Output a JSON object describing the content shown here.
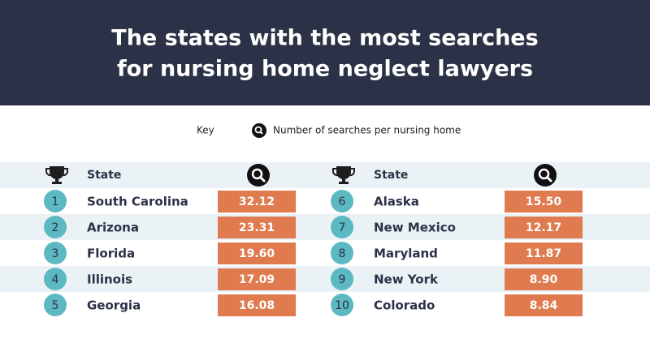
{
  "header": {
    "title_lines": [
      "The states with the most searches",
      "for nursing home neglect lawyers"
    ]
  },
  "key": {
    "label": "Key",
    "description": "Number of searches per nursing home"
  },
  "panels": [
    {
      "header": "State",
      "rows": [
        {
          "rank": "1",
          "state": "South Carolina",
          "value": "32.12"
        },
        {
          "rank": "2",
          "state": "Arizona",
          "value": "23.31"
        },
        {
          "rank": "3",
          "state": "Florida",
          "value": "19.60"
        },
        {
          "rank": "4",
          "state": "Illinois",
          "value": "17.09"
        },
        {
          "rank": "5",
          "state": "Georgia",
          "value": "16.08"
        }
      ]
    },
    {
      "header": "State",
      "rows": [
        {
          "rank": "6",
          "state": "Alaska",
          "value": "15.50"
        },
        {
          "rank": "7",
          "state": "New Mexico",
          "value": "12.17"
        },
        {
          "rank": "8",
          "state": "Maryland",
          "value": "11.87"
        },
        {
          "rank": "9",
          "state": "New York",
          "value": "8.90"
        },
        {
          "rank": "10",
          "state": "Colorado",
          "value": "8.84"
        }
      ]
    }
  ]
}
